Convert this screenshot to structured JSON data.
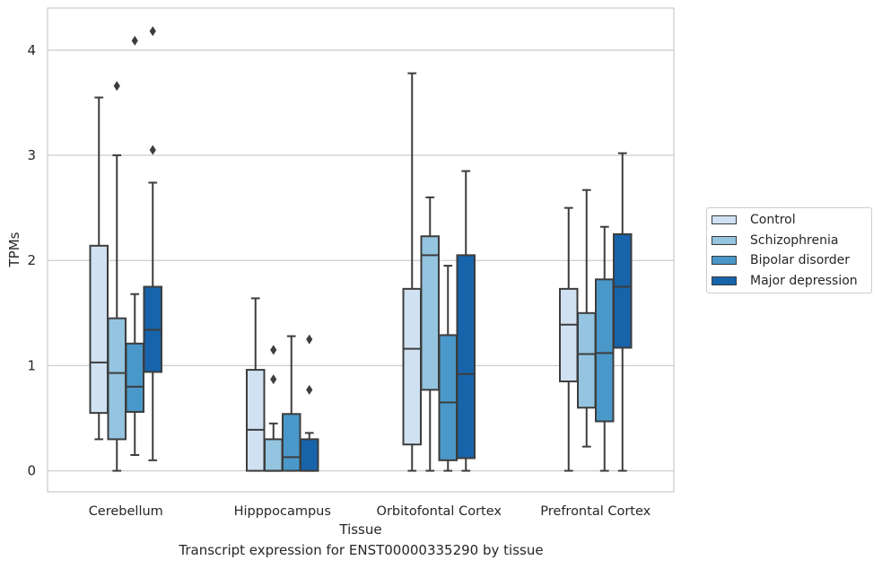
{
  "chart_data": {
    "type": "box",
    "xlabel": "Tissue",
    "ylabel": "TPMs",
    "caption": "Transcript expression for ENST00000335290 by tissue",
    "ylim": [
      -0.2,
      4.4
    ],
    "yticks": [
      0,
      1,
      2,
      3,
      4
    ],
    "grid": "horizontal",
    "legend_position": "right",
    "categories": [
      "Cerebellum",
      "Hipppocampus",
      "Orbitofontal Cortex",
      "Prefrontal Cortex"
    ],
    "series": [
      {
        "name": "Control",
        "color": "#d0e1f2",
        "boxes": [
          {
            "whisker_low": 0.3,
            "q1": 0.55,
            "median": 1.03,
            "q3": 2.14,
            "whisker_high": 3.55,
            "outliers": []
          },
          {
            "whisker_low": 0.0,
            "q1": 0.0,
            "median": 0.39,
            "q3": 0.96,
            "whisker_high": 1.64,
            "outliers": []
          },
          {
            "whisker_low": 0.0,
            "q1": 0.25,
            "median": 1.16,
            "q3": 1.73,
            "whisker_high": 3.78,
            "outliers": []
          },
          {
            "whisker_low": 0.0,
            "q1": 0.85,
            "median": 1.39,
            "q3": 1.73,
            "whisker_high": 2.5,
            "outliers": []
          }
        ]
      },
      {
        "name": "Schizophrenia",
        "color": "#94c4df",
        "boxes": [
          {
            "whisker_low": 0.0,
            "q1": 0.3,
            "median": 0.93,
            "q3": 1.45,
            "whisker_high": 3.0,
            "outliers": [
              3.66
            ]
          },
          {
            "whisker_low": 0.0,
            "q1": 0.0,
            "median": 0.0,
            "q3": 0.3,
            "whisker_high": 0.45,
            "outliers": [
              0.87,
              1.15
            ]
          },
          {
            "whisker_low": 0.0,
            "q1": 0.77,
            "median": 2.05,
            "q3": 2.23,
            "whisker_high": 2.6,
            "outliers": []
          },
          {
            "whisker_low": 0.23,
            "q1": 0.6,
            "median": 1.11,
            "q3": 1.5,
            "whisker_high": 2.67,
            "outliers": []
          }
        ]
      },
      {
        "name": "Bipolar disorder",
        "color": "#4a98c9",
        "boxes": [
          {
            "whisker_low": 0.15,
            "q1": 0.56,
            "median": 0.8,
            "q3": 1.21,
            "whisker_high": 1.68,
            "outliers": [
              4.09
            ]
          },
          {
            "whisker_low": 0.0,
            "q1": 0.0,
            "median": 0.13,
            "q3": 0.54,
            "whisker_high": 1.28,
            "outliers": []
          },
          {
            "whisker_low": 0.0,
            "q1": 0.1,
            "median": 0.65,
            "q3": 1.29,
            "whisker_high": 1.95,
            "outliers": []
          },
          {
            "whisker_low": 0.0,
            "q1": 0.47,
            "median": 1.12,
            "q3": 1.82,
            "whisker_high": 2.32,
            "outliers": []
          }
        ]
      },
      {
        "name": "Major depression",
        "color": "#1764ab",
        "boxes": [
          {
            "whisker_low": 0.1,
            "q1": 0.94,
            "median": 1.34,
            "q3": 1.75,
            "whisker_high": 2.74,
            "outliers": [
              3.05,
              4.18
            ]
          },
          {
            "whisker_low": 0.0,
            "q1": 0.0,
            "median": 0.0,
            "q3": 0.3,
            "whisker_high": 0.36,
            "outliers": [
              0.77,
              1.25
            ]
          },
          {
            "whisker_low": 0.0,
            "q1": 0.12,
            "median": 0.92,
            "q3": 2.05,
            "whisker_high": 2.85,
            "outliers": []
          },
          {
            "whisker_low": 0.0,
            "q1": 1.17,
            "median": 1.75,
            "q3": 2.25,
            "whisker_high": 3.02,
            "outliers": []
          }
        ]
      }
    ]
  }
}
